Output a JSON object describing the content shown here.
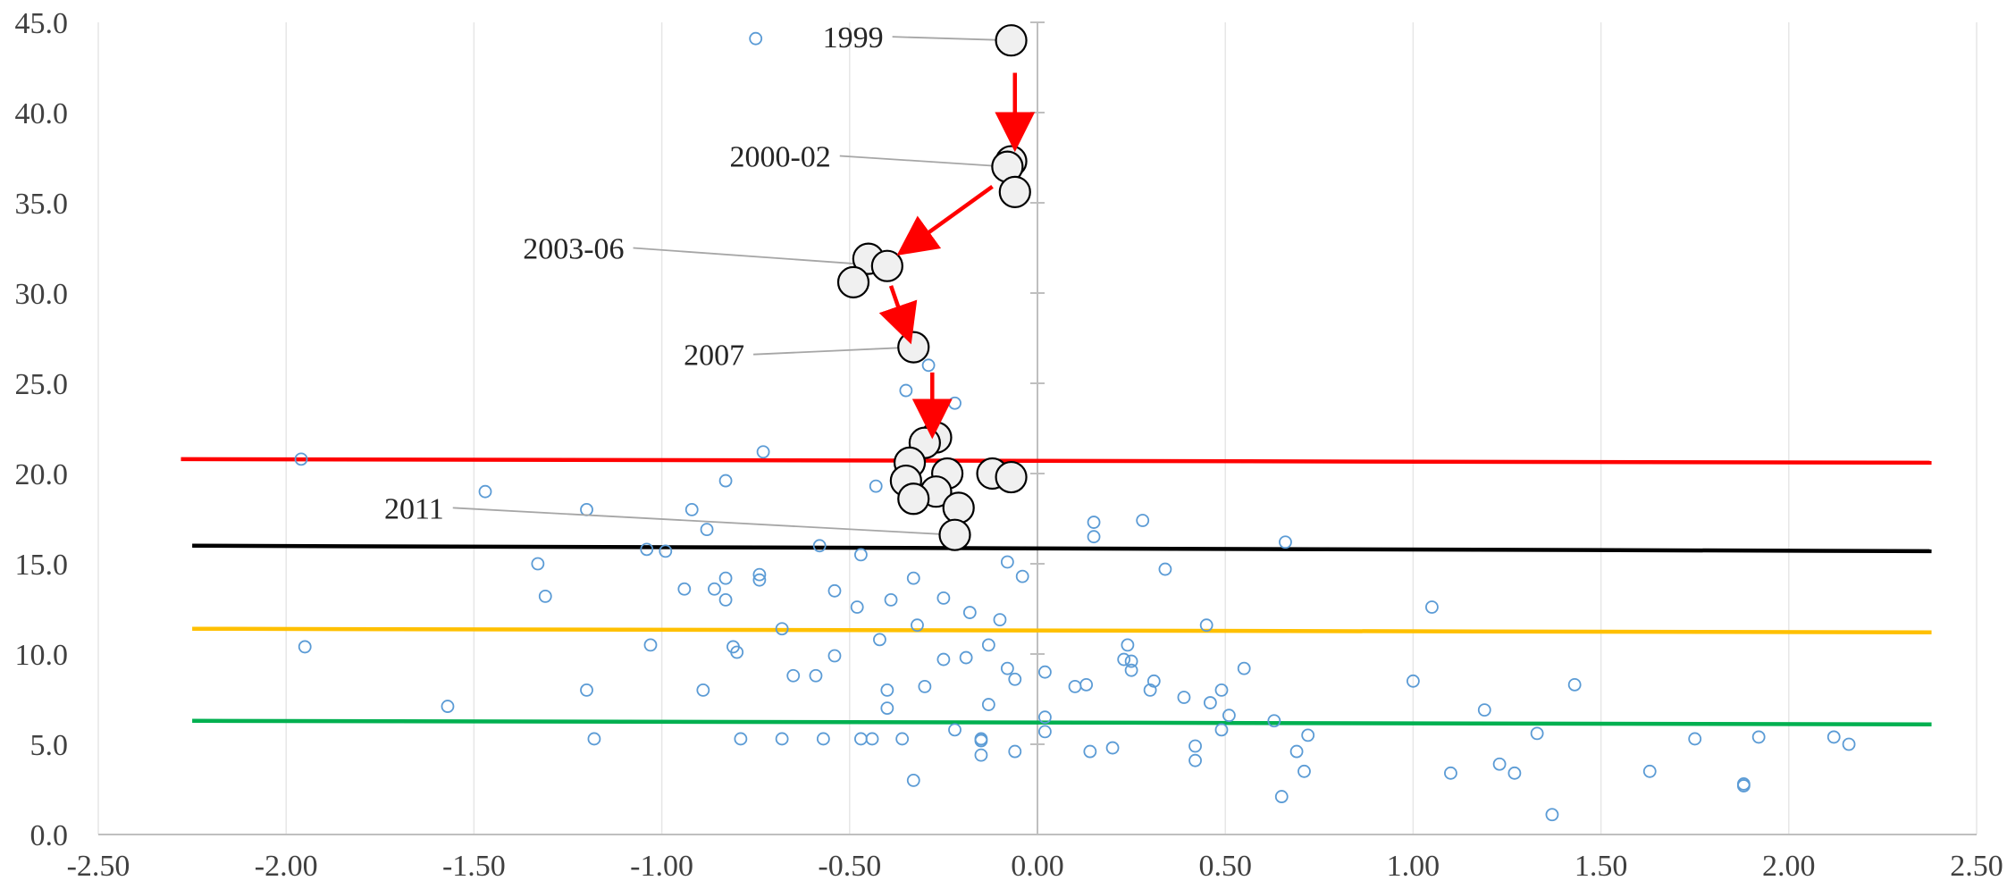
{
  "chart_data": {
    "type": "scatter",
    "title": "",
    "xlabel": "",
    "ylabel": "",
    "xlim": [
      -2.5,
      2.5
    ],
    "ylim": [
      0,
      45
    ],
    "x_ticks": [
      -2.5,
      -2.0,
      -1.5,
      -1.0,
      -0.5,
      0.0,
      0.5,
      1.0,
      1.5,
      2.0,
      2.5
    ],
    "x_tick_labels": [
      "-2.50",
      "-2.00",
      "-1.50",
      "-1.00",
      "-0.50",
      "0.00",
      "0.50",
      "1.00",
      "1.50",
      "2.00",
      "2.50"
    ],
    "y_ticks": [
      0,
      5,
      10,
      15,
      20,
      25,
      30,
      35,
      40,
      45
    ],
    "y_tick_labels": [
      "0.0",
      "5.0",
      "10.0",
      "15.0",
      "20.0",
      "25.0",
      "30.0",
      "35.0",
      "40.0",
      "45.0"
    ],
    "grid": "vertical gridlines",
    "colors": {
      "small_points": "#5b9bd5",
      "large_points_fill": "#f0f0f0",
      "large_points_stroke": "#000000",
      "arrows": "#ff0000",
      "leader_lines": "#a6a6a6",
      "red_line": "#ff0000",
      "black_line": "#000000",
      "yellow_line": "#ffc000",
      "green_line": "#00b050"
    },
    "lines": [
      {
        "color": "#ff0000",
        "x": [
          -2.28,
          2.38
        ],
        "y": [
          20.8,
          20.6
        ]
      },
      {
        "color": "#000000",
        "x": [
          -2.25,
          2.38
        ],
        "y": [
          16.0,
          15.7
        ]
      },
      {
        "color": "#ffc000",
        "x": [
          -2.25,
          2.38
        ],
        "y": [
          11.4,
          11.2
        ]
      },
      {
        "color": "#00b050",
        "x": [
          -2.25,
          2.38
        ],
        "y": [
          6.3,
          6.1
        ]
      }
    ],
    "small_points": [
      [
        -0.75,
        44.1
      ],
      [
        -1.96,
        20.8
      ],
      [
        -1.95,
        10.4
      ],
      [
        -1.57,
        7.1
      ],
      [
        -1.47,
        19.0
      ],
      [
        -1.33,
        15.0
      ],
      [
        -1.31,
        13.2
      ],
      [
        -1.2,
        18.0
      ],
      [
        -1.2,
        8.0
      ],
      [
        -1.18,
        5.3
      ],
      [
        -1.04,
        15.8
      ],
      [
        -1.03,
        10.5
      ],
      [
        -0.99,
        15.7
      ],
      [
        -0.94,
        13.6
      ],
      [
        -0.92,
        18.0
      ],
      [
        -0.89,
        8.0
      ],
      [
        -0.88,
        16.9
      ],
      [
        -0.86,
        13.6
      ],
      [
        -0.83,
        19.6
      ],
      [
        -0.83,
        14.2
      ],
      [
        -0.83,
        13.0
      ],
      [
        -0.81,
        10.4
      ],
      [
        -0.8,
        10.1
      ],
      [
        -0.79,
        5.3
      ],
      [
        -0.74,
        14.4
      ],
      [
        -0.74,
        14.1
      ],
      [
        -0.73,
        21.2
      ],
      [
        -0.68,
        11.4
      ],
      [
        -0.68,
        5.3
      ],
      [
        -0.65,
        8.8
      ],
      [
        -0.59,
        8.8
      ],
      [
        -0.58,
        16.0
      ],
      [
        -0.57,
        5.3
      ],
      [
        -0.54,
        13.5
      ],
      [
        -0.54,
        9.9
      ],
      [
        -0.47,
        15.5
      ],
      [
        -0.48,
        12.6
      ],
      [
        -0.47,
        5.3
      ],
      [
        -0.44,
        5.3
      ],
      [
        -0.43,
        19.3
      ],
      [
        -0.42,
        10.8
      ],
      [
        -0.4,
        8.0
      ],
      [
        -0.4,
        7.0
      ],
      [
        -0.39,
        13.0
      ],
      [
        -0.36,
        5.3
      ],
      [
        -0.35,
        24.6
      ],
      [
        -0.33,
        14.2
      ],
      [
        -0.32,
        11.6
      ],
      [
        -0.33,
        3.0
      ],
      [
        -0.3,
        8.2
      ],
      [
        -0.29,
        26.0
      ],
      [
        -0.25,
        13.1
      ],
      [
        -0.25,
        9.7
      ],
      [
        -0.22,
        23.9
      ],
      [
        -0.22,
        5.8
      ],
      [
        -0.19,
        9.8
      ],
      [
        -0.18,
        12.3
      ],
      [
        -0.15,
        5.3
      ],
      [
        -0.15,
        5.2
      ],
      [
        -0.15,
        4.4
      ],
      [
        -0.13,
        10.5
      ],
      [
        -0.13,
        7.2
      ],
      [
        -0.1,
        11.9
      ],
      [
        -0.08,
        15.1
      ],
      [
        -0.08,
        9.2
      ],
      [
        -0.06,
        8.6
      ],
      [
        -0.06,
        4.6
      ],
      [
        -0.04,
        14.3
      ],
      [
        0.02,
        9.0
      ],
      [
        0.02,
        6.5
      ],
      [
        0.02,
        5.7
      ],
      [
        0.1,
        8.2
      ],
      [
        0.13,
        8.3
      ],
      [
        0.14,
        4.6
      ],
      [
        0.15,
        17.3
      ],
      [
        0.15,
        16.5
      ],
      [
        0.2,
        4.8
      ],
      [
        0.23,
        9.7
      ],
      [
        0.24,
        10.5
      ],
      [
        0.25,
        9.6
      ],
      [
        0.25,
        9.1
      ],
      [
        0.28,
        17.4
      ],
      [
        0.3,
        8.0
      ],
      [
        0.31,
        8.5
      ],
      [
        0.34,
        14.7
      ],
      [
        0.39,
        7.6
      ],
      [
        0.42,
        4.9
      ],
      [
        0.42,
        4.1
      ],
      [
        0.45,
        11.6
      ],
      [
        0.46,
        7.3
      ],
      [
        0.49,
        8.0
      ],
      [
        0.49,
        5.8
      ],
      [
        0.51,
        6.6
      ],
      [
        0.55,
        9.2
      ],
      [
        0.63,
        6.3
      ],
      [
        0.65,
        2.1
      ],
      [
        0.66,
        16.2
      ],
      [
        0.69,
        4.6
      ],
      [
        0.71,
        3.5
      ],
      [
        0.72,
        5.5
      ],
      [
        1.0,
        8.5
      ],
      [
        1.05,
        12.6
      ],
      [
        1.1,
        3.4
      ],
      [
        1.19,
        6.9
      ],
      [
        1.23,
        3.9
      ],
      [
        1.27,
        3.4
      ],
      [
        1.33,
        5.6
      ],
      [
        1.37,
        1.1
      ],
      [
        1.43,
        8.3
      ],
      [
        1.63,
        3.5
      ],
      [
        1.75,
        5.3
      ],
      [
        1.88,
        2.8
      ],
      [
        1.88,
        2.7
      ],
      [
        1.92,
        5.4
      ],
      [
        2.12,
        5.4
      ],
      [
        2.16,
        5.0
      ]
    ],
    "large_points": [
      [
        -0.07,
        44.0
      ],
      [
        -0.07,
        37.3
      ],
      [
        -0.08,
        37.0
      ],
      [
        -0.06,
        35.6
      ],
      [
        -0.45,
        31.9
      ],
      [
        -0.4,
        31.5
      ],
      [
        -0.49,
        30.6
      ],
      [
        -0.33,
        27.0
      ],
      [
        -0.27,
        22.0
      ],
      [
        -0.3,
        21.7
      ],
      [
        -0.34,
        20.6
      ],
      [
        -0.24,
        20.0
      ],
      [
        -0.12,
        20.0
      ],
      [
        -0.07,
        19.8
      ],
      [
        -0.35,
        19.6
      ],
      [
        -0.27,
        19.0
      ],
      [
        -0.33,
        18.6
      ],
      [
        -0.21,
        18.1
      ],
      [
        -0.22,
        16.6
      ]
    ],
    "arrows": [
      {
        "from": [
          -0.06,
          42.2
        ],
        "to": [
          -0.06,
          38.7
        ]
      },
      {
        "from": [
          -0.12,
          35.9
        ],
        "to": [
          -0.34,
          32.6
        ]
      },
      {
        "from": [
          -0.39,
          30.4
        ],
        "to": [
          -0.35,
          28.0
        ]
      },
      {
        "from": [
          -0.28,
          25.6
        ],
        "to": [
          -0.28,
          22.8
        ]
      }
    ],
    "annotations": [
      {
        "text": "1999",
        "label_at": [
          -0.41,
          44.2
        ],
        "point": [
          -0.07,
          44.0
        ]
      },
      {
        "text": "2000-02",
        "label_at": [
          -0.55,
          37.6
        ],
        "point": [
          -0.08,
          37.0
        ]
      },
      {
        "text": "2003-06",
        "label_at": [
          -1.1,
          32.5
        ],
        "point": [
          -0.4,
          31.5
        ]
      },
      {
        "text": "2007",
        "label_at": [
          -0.78,
          26.6
        ],
        "point": [
          -0.33,
          27.0
        ]
      },
      {
        "text": "2011",
        "label_at": [
          -1.58,
          18.1
        ],
        "point": [
          -0.22,
          16.6
        ]
      }
    ]
  }
}
